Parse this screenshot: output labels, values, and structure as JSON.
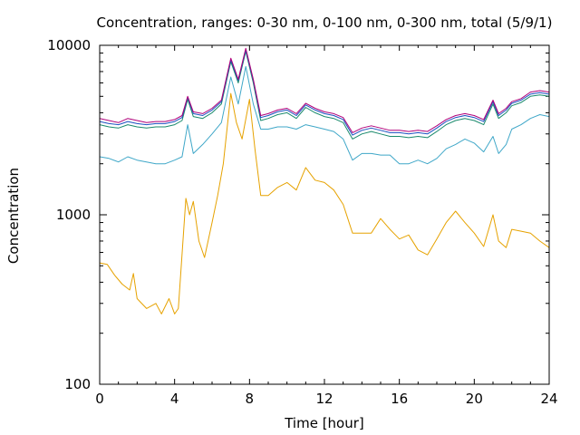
{
  "chart_data": {
    "type": "line",
    "title": "Concentration, ranges: 0-30 nm, 0-100 nm, 0-300 nm, total (5/9/1)",
    "xlabel": "Time [hour]",
    "ylabel": "Concentration",
    "xlim": [
      0,
      24
    ],
    "ylim": [
      100,
      10000
    ],
    "y_scale": "log",
    "grid": false,
    "legend": "none",
    "x_ticks": [
      "0",
      "4",
      "8",
      "12",
      "16",
      "20",
      "24"
    ],
    "y_ticks": [
      "100",
      "1000",
      "10000"
    ],
    "series": [
      {
        "color": "#e6a200",
        "points": [
          [
            0,
            520
          ],
          [
            0.4,
            510
          ],
          [
            0.8,
            440
          ],
          [
            1.2,
            390
          ],
          [
            1.6,
            360
          ],
          [
            1.8,
            450
          ],
          [
            2.0,
            320
          ],
          [
            2.5,
            280
          ],
          [
            3.0,
            300
          ],
          [
            3.3,
            260
          ],
          [
            3.7,
            320
          ],
          [
            4.0,
            260
          ],
          [
            4.2,
            280
          ],
          [
            4.6,
            1250
          ],
          [
            4.8,
            1000
          ],
          [
            5.0,
            1200
          ],
          [
            5.3,
            700
          ],
          [
            5.6,
            560
          ],
          [
            6.0,
            900
          ],
          [
            6.3,
            1300
          ],
          [
            6.6,
            2000
          ],
          [
            7.0,
            5200
          ],
          [
            7.3,
            3500
          ],
          [
            7.6,
            2800
          ],
          [
            8.0,
            4800
          ],
          [
            8.3,
            2400
          ],
          [
            8.6,
            1300
          ],
          [
            9.0,
            1300
          ],
          [
            9.5,
            1450
          ],
          [
            10.0,
            1550
          ],
          [
            10.5,
            1400
          ],
          [
            11.0,
            1900
          ],
          [
            11.5,
            1600
          ],
          [
            12.0,
            1550
          ],
          [
            12.5,
            1400
          ],
          [
            13.0,
            1150
          ],
          [
            13.5,
            780
          ],
          [
            14.0,
            780
          ],
          [
            14.5,
            780
          ],
          [
            15.0,
            950
          ],
          [
            15.5,
            820
          ],
          [
            16.0,
            720
          ],
          [
            16.5,
            760
          ],
          [
            17.0,
            620
          ],
          [
            17.5,
            580
          ],
          [
            18.0,
            720
          ],
          [
            18.5,
            900
          ],
          [
            19.0,
            1050
          ],
          [
            19.5,
            900
          ],
          [
            20.0,
            780
          ],
          [
            20.5,
            650
          ],
          [
            21.0,
            1000
          ],
          [
            21.3,
            700
          ],
          [
            21.7,
            640
          ],
          [
            22.0,
            820
          ],
          [
            22.5,
            800
          ],
          [
            23.0,
            780
          ],
          [
            23.5,
            700
          ],
          [
            24.0,
            640
          ]
        ]
      },
      {
        "color": "#3fa7c8",
        "points": [
          [
            0,
            2200
          ],
          [
            0.5,
            2150
          ],
          [
            1.0,
            2050
          ],
          [
            1.5,
            2200
          ],
          [
            2.0,
            2100
          ],
          [
            2.5,
            2050
          ],
          [
            3.0,
            2000
          ],
          [
            3.5,
            2000
          ],
          [
            4.0,
            2100
          ],
          [
            4.4,
            2200
          ],
          [
            4.7,
            3400
          ],
          [
            5.0,
            2300
          ],
          [
            5.5,
            2600
          ],
          [
            6.0,
            3000
          ],
          [
            6.5,
            3500
          ],
          [
            7.0,
            6500
          ],
          [
            7.4,
            4500
          ],
          [
            7.8,
            7500
          ],
          [
            8.2,
            4500
          ],
          [
            8.6,
            3200
          ],
          [
            9.0,
            3200
          ],
          [
            9.5,
            3300
          ],
          [
            10.0,
            3300
          ],
          [
            10.5,
            3200
          ],
          [
            11.0,
            3400
          ],
          [
            11.5,
            3300
          ],
          [
            12.0,
            3200
          ],
          [
            12.5,
            3100
          ],
          [
            13.0,
            2800
          ],
          [
            13.5,
            2100
          ],
          [
            14.0,
            2300
          ],
          [
            14.5,
            2300
          ],
          [
            15.0,
            2250
          ],
          [
            15.5,
            2250
          ],
          [
            16.0,
            2000
          ],
          [
            16.5,
            2000
          ],
          [
            17.0,
            2100
          ],
          [
            17.5,
            2000
          ],
          [
            18.0,
            2150
          ],
          [
            18.5,
            2450
          ],
          [
            19.0,
            2600
          ],
          [
            19.5,
            2800
          ],
          [
            20.0,
            2650
          ],
          [
            20.5,
            2350
          ],
          [
            21.0,
            2900
          ],
          [
            21.3,
            2300
          ],
          [
            21.7,
            2600
          ],
          [
            22.0,
            3200
          ],
          [
            22.5,
            3400
          ],
          [
            23.0,
            3700
          ],
          [
            23.5,
            3900
          ],
          [
            24.0,
            3800
          ]
        ]
      },
      {
        "color": "#1a8a6c",
        "points": [
          [
            0,
            3400
          ],
          [
            0.5,
            3300
          ],
          [
            1.0,
            3250
          ],
          [
            1.5,
            3400
          ],
          [
            2.0,
            3300
          ],
          [
            2.5,
            3250
          ],
          [
            3.0,
            3300
          ],
          [
            3.5,
            3300
          ],
          [
            4.0,
            3400
          ],
          [
            4.4,
            3600
          ],
          [
            4.7,
            4800
          ],
          [
            5.0,
            3800
          ],
          [
            5.5,
            3700
          ],
          [
            6.0,
            4000
          ],
          [
            6.5,
            4500
          ],
          [
            7.0,
            8000
          ],
          [
            7.4,
            6000
          ],
          [
            7.8,
            9200
          ],
          [
            8.2,
            6000
          ],
          [
            8.6,
            3600
          ],
          [
            9.0,
            3700
          ],
          [
            9.5,
            3900
          ],
          [
            10.0,
            4000
          ],
          [
            10.5,
            3700
          ],
          [
            11.0,
            4300
          ],
          [
            11.5,
            4000
          ],
          [
            12.0,
            3800
          ],
          [
            12.5,
            3700
          ],
          [
            13.0,
            3500
          ],
          [
            13.5,
            2800
          ],
          [
            14.0,
            3000
          ],
          [
            14.5,
            3100
          ],
          [
            15.0,
            3000
          ],
          [
            15.5,
            2900
          ],
          [
            16.0,
            2900
          ],
          [
            16.5,
            2850
          ],
          [
            17.0,
            2900
          ],
          [
            17.5,
            2850
          ],
          [
            18.0,
            3100
          ],
          [
            18.5,
            3400
          ],
          [
            19.0,
            3600
          ],
          [
            19.5,
            3700
          ],
          [
            20.0,
            3600
          ],
          [
            20.5,
            3400
          ],
          [
            21.0,
            4500
          ],
          [
            21.3,
            3700
          ],
          [
            21.7,
            4000
          ],
          [
            22.0,
            4400
          ],
          [
            22.5,
            4600
          ],
          [
            23.0,
            5000
          ],
          [
            23.5,
            5100
          ],
          [
            24.0,
            5000
          ]
        ]
      },
      {
        "color": "#1a4fc0",
        "points": [
          [
            0,
            3550
          ],
          [
            0.5,
            3450
          ],
          [
            1.0,
            3400
          ],
          [
            1.5,
            3550
          ],
          [
            2.0,
            3450
          ],
          [
            2.5,
            3400
          ],
          [
            3.0,
            3450
          ],
          [
            3.5,
            3450
          ],
          [
            4.0,
            3550
          ],
          [
            4.4,
            3750
          ],
          [
            4.7,
            4950
          ],
          [
            5.0,
            3950
          ],
          [
            5.5,
            3850
          ],
          [
            6.0,
            4150
          ],
          [
            6.5,
            4650
          ],
          [
            7.0,
            8200
          ],
          [
            7.4,
            6200
          ],
          [
            7.8,
            9400
          ],
          [
            8.2,
            6200
          ],
          [
            8.6,
            3750
          ],
          [
            9.0,
            3850
          ],
          [
            9.5,
            4050
          ],
          [
            10.0,
            4150
          ],
          [
            10.5,
            3850
          ],
          [
            11.0,
            4450
          ],
          [
            11.5,
            4150
          ],
          [
            12.0,
            3950
          ],
          [
            12.5,
            3850
          ],
          [
            13.0,
            3650
          ],
          [
            13.5,
            2950
          ],
          [
            14.0,
            3150
          ],
          [
            14.5,
            3250
          ],
          [
            15.0,
            3150
          ],
          [
            15.5,
            3050
          ],
          [
            16.0,
            3050
          ],
          [
            16.5,
            3000
          ],
          [
            17.0,
            3050
          ],
          [
            17.5,
            3000
          ],
          [
            18.0,
            3250
          ],
          [
            18.5,
            3550
          ],
          [
            19.0,
            3750
          ],
          [
            19.5,
            3850
          ],
          [
            20.0,
            3750
          ],
          [
            20.5,
            3550
          ],
          [
            21.0,
            4650
          ],
          [
            21.3,
            3850
          ],
          [
            21.7,
            4150
          ],
          [
            22.0,
            4550
          ],
          [
            22.5,
            4750
          ],
          [
            23.0,
            5150
          ],
          [
            23.5,
            5250
          ],
          [
            24.0,
            5150
          ]
        ]
      },
      {
        "color": "#b0007a",
        "points": [
          [
            0,
            3700
          ],
          [
            0.5,
            3600
          ],
          [
            1.0,
            3500
          ],
          [
            1.5,
            3700
          ],
          [
            2.0,
            3600
          ],
          [
            2.5,
            3500
          ],
          [
            3.0,
            3550
          ],
          [
            3.5,
            3550
          ],
          [
            4.0,
            3650
          ],
          [
            4.4,
            3850
          ],
          [
            4.7,
            5000
          ],
          [
            5.0,
            4050
          ],
          [
            5.5,
            3950
          ],
          [
            6.0,
            4250
          ],
          [
            6.5,
            4750
          ],
          [
            7.0,
            8400
          ],
          [
            7.4,
            6300
          ],
          [
            7.8,
            9600
          ],
          [
            8.2,
            6300
          ],
          [
            8.6,
            3850
          ],
          [
            9.0,
            3950
          ],
          [
            9.5,
            4150
          ],
          [
            10.0,
            4250
          ],
          [
            10.5,
            3950
          ],
          [
            11.0,
            4550
          ],
          [
            11.5,
            4250
          ],
          [
            12.0,
            4050
          ],
          [
            12.5,
            3950
          ],
          [
            13.0,
            3750
          ],
          [
            13.5,
            3050
          ],
          [
            14.0,
            3250
          ],
          [
            14.5,
            3350
          ],
          [
            15.0,
            3250
          ],
          [
            15.5,
            3150
          ],
          [
            16.0,
            3150
          ],
          [
            16.5,
            3100
          ],
          [
            17.0,
            3150
          ],
          [
            17.5,
            3100
          ],
          [
            18.0,
            3350
          ],
          [
            18.5,
            3650
          ],
          [
            19.0,
            3850
          ],
          [
            19.5,
            3950
          ],
          [
            20.0,
            3850
          ],
          [
            20.5,
            3650
          ],
          [
            21.0,
            4750
          ],
          [
            21.3,
            3950
          ],
          [
            21.7,
            4250
          ],
          [
            22.0,
            4650
          ],
          [
            22.5,
            4850
          ],
          [
            23.0,
            5300
          ],
          [
            23.5,
            5400
          ],
          [
            24.0,
            5300
          ]
        ]
      }
    ]
  }
}
